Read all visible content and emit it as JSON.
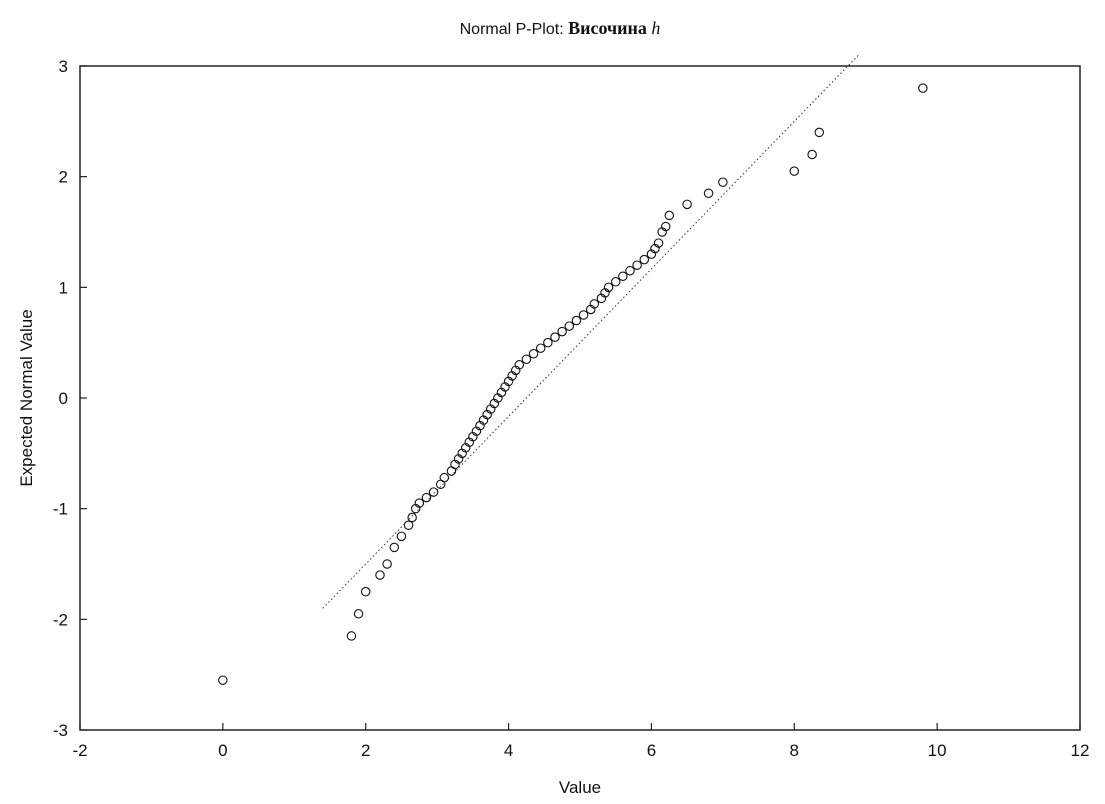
{
  "chart_data": {
    "type": "scatter",
    "title_prefix": "Normal P-Plot: ",
    "title_var": "Височина ",
    "title_symbol": "h",
    "xlabel": "Value",
    "ylabel": "Expected Normal Value",
    "xlim": [
      -2,
      12
    ],
    "ylim": [
      -3,
      3
    ],
    "xticks": [
      "-2",
      "0",
      "2",
      "4",
      "6",
      "8",
      "10",
      "12"
    ],
    "yticks": [
      "-3",
      "-2",
      "-1",
      "0",
      "1",
      "2",
      "3"
    ],
    "grid": false,
    "reference_line": {
      "x": [
        1.4,
        8.9
      ],
      "y": [
        -1.9,
        3.1
      ]
    },
    "points": [
      [
        0.0,
        -2.55
      ],
      [
        1.8,
        -2.15
      ],
      [
        1.9,
        -1.95
      ],
      [
        2.0,
        -1.75
      ],
      [
        2.2,
        -1.6
      ],
      [
        2.3,
        -1.5
      ],
      [
        2.4,
        -1.35
      ],
      [
        2.5,
        -1.25
      ],
      [
        2.6,
        -1.15
      ],
      [
        2.65,
        -1.08
      ],
      [
        2.7,
        -1.0
      ],
      [
        2.75,
        -0.95
      ],
      [
        2.85,
        -0.9
      ],
      [
        2.95,
        -0.85
      ],
      [
        3.05,
        -0.78
      ],
      [
        3.1,
        -0.72
      ],
      [
        3.2,
        -0.66
      ],
      [
        3.25,
        -0.6
      ],
      [
        3.3,
        -0.55
      ],
      [
        3.35,
        -0.5
      ],
      [
        3.4,
        -0.45
      ],
      [
        3.45,
        -0.4
      ],
      [
        3.5,
        -0.35
      ],
      [
        3.55,
        -0.3
      ],
      [
        3.6,
        -0.25
      ],
      [
        3.65,
        -0.2
      ],
      [
        3.7,
        -0.15
      ],
      [
        3.75,
        -0.1
      ],
      [
        3.8,
        -0.05
      ],
      [
        3.85,
        0.0
      ],
      [
        3.9,
        0.05
      ],
      [
        3.95,
        0.1
      ],
      [
        4.0,
        0.15
      ],
      [
        4.05,
        0.2
      ],
      [
        4.1,
        0.25
      ],
      [
        4.15,
        0.3
      ],
      [
        4.25,
        0.35
      ],
      [
        4.35,
        0.4
      ],
      [
        4.45,
        0.45
      ],
      [
        4.55,
        0.5
      ],
      [
        4.65,
        0.55
      ],
      [
        4.75,
        0.6
      ],
      [
        4.85,
        0.65
      ],
      [
        4.95,
        0.7
      ],
      [
        5.05,
        0.75
      ],
      [
        5.15,
        0.8
      ],
      [
        5.2,
        0.85
      ],
      [
        5.3,
        0.9
      ],
      [
        5.35,
        0.95
      ],
      [
        5.4,
        1.0
      ],
      [
        5.5,
        1.05
      ],
      [
        5.6,
        1.1
      ],
      [
        5.7,
        1.15
      ],
      [
        5.8,
        1.2
      ],
      [
        5.9,
        1.25
      ],
      [
        6.0,
        1.3
      ],
      [
        6.05,
        1.35
      ],
      [
        6.1,
        1.4
      ],
      [
        6.15,
        1.5
      ],
      [
        6.2,
        1.55
      ],
      [
        6.25,
        1.65
      ],
      [
        6.5,
        1.75
      ],
      [
        6.8,
        1.85
      ],
      [
        7.0,
        1.95
      ],
      [
        8.0,
        2.05
      ],
      [
        8.25,
        2.2
      ],
      [
        8.35,
        2.4
      ],
      [
        9.8,
        2.8
      ]
    ]
  }
}
